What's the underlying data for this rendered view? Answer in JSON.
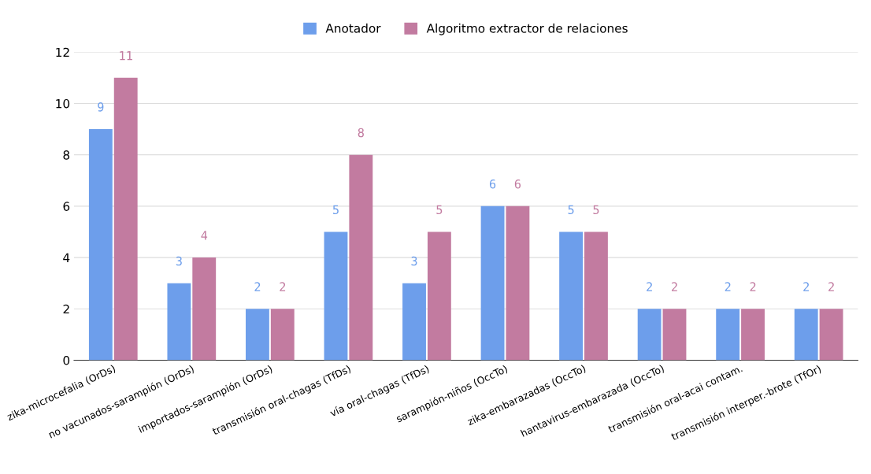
{
  "chart_data": {
    "type": "bar",
    "categories": [
      "zika-microcefalia (OrDs)",
      "no vacunados-sarampión (OrDs)",
      "importados-sarampión (OrDs)",
      "transmisión oral-chagas (TfDs)",
      "vía oral-chagas (TfDs)",
      "sarampión-niños (OccTo)",
      "zika-embarazadas (OccTo)",
      "hantavirus-embarazada (OccTo)",
      "transmisión oral-acai contam.",
      "transmisión interper.-brote (TfOr)"
    ],
    "series": [
      {
        "name": "Anotador",
        "color": "#6d9eeb",
        "values": [
          9,
          3,
          2,
          5,
          3,
          6,
          5,
          2,
          2,
          2
        ]
      },
      {
        "name": "Algoritmo extractor de relaciones",
        "color": "#c27ba0",
        "values": [
          11,
          4,
          2,
          8,
          5,
          6,
          5,
          2,
          2,
          2
        ]
      }
    ],
    "ylim": [
      0,
      12
    ],
    "yticks": [
      0,
      2,
      4,
      6,
      8,
      10,
      12
    ],
    "grid": "y",
    "legend": "top",
    "data_labels": true
  }
}
